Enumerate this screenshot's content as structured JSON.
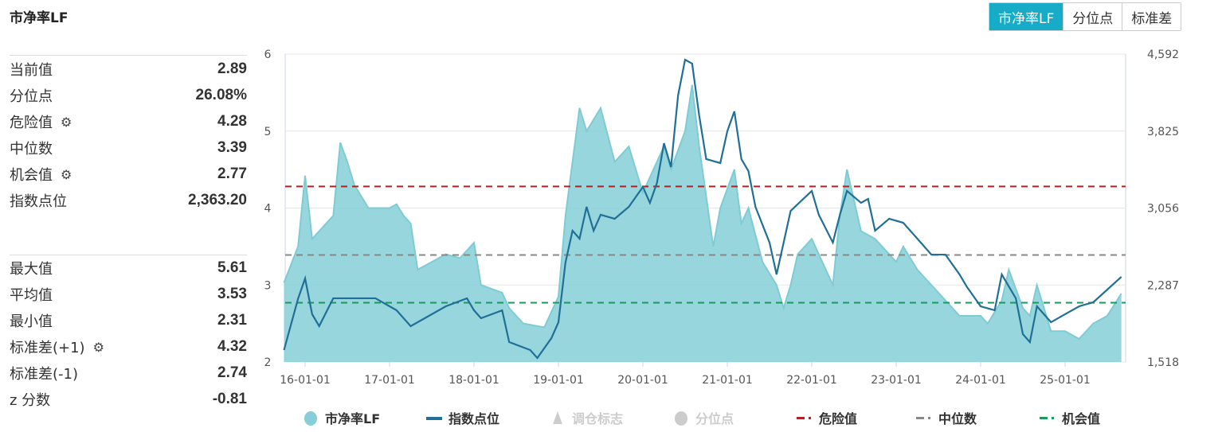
{
  "title": "市净率LF",
  "buttons": [
    {
      "label": "市净率LF",
      "active": true
    },
    {
      "label": "分位点",
      "active": false
    },
    {
      "label": "标准差",
      "active": false
    }
  ],
  "stats_top": [
    {
      "label": "当前值",
      "value": "2.89",
      "gear": false
    },
    {
      "label": "分位点",
      "value": "26.08%",
      "gear": false
    },
    {
      "label": "危险值",
      "value": "4.28",
      "gear": true
    },
    {
      "label": "中位数",
      "value": "3.39",
      "gear": false
    },
    {
      "label": "机会值",
      "value": "2.77",
      "gear": true
    },
    {
      "label": "指数点位",
      "value": "2,363.20",
      "gear": false
    }
  ],
  "stats_bottom": [
    {
      "label": "最大值",
      "value": "5.61",
      "gear": false
    },
    {
      "label": "平均值",
      "value": "3.53",
      "gear": false
    },
    {
      "label": "最小值",
      "value": "2.31",
      "gear": false
    },
    {
      "label": "标准差(+1)",
      "value": "4.32",
      "gear": true
    },
    {
      "label": "标准差(-1)",
      "value": "2.74",
      "gear": false
    },
    {
      "label": "z 分数",
      "value": "-0.81",
      "gear": false
    }
  ],
  "chart_data": {
    "type": "area+line",
    "x_ticks": [
      "16-01-01",
      "17-01-01",
      "18-01-01",
      "19-01-01",
      "20-01-01",
      "21-01-01",
      "22-01-01",
      "23-01-01",
      "24-01-01",
      "25-01-01"
    ],
    "y_left": {
      "min": 2,
      "max": 6,
      "ticks": [
        "2",
        "3",
        "4",
        "5",
        "6"
      ]
    },
    "y_right": {
      "min": 1518,
      "max": 4592,
      "ticks": [
        "1,518",
        "2,287",
        "3,056",
        "3,825",
        "4,592"
      ]
    },
    "grid": true,
    "legend_position": "bottom",
    "legend": [
      {
        "label": "市净率LF",
        "icon": "circle",
        "color": "#86cfd8",
        "enabled": true
      },
      {
        "label": "指数点位",
        "icon": "line",
        "color": "#1f6f96",
        "enabled": true
      },
      {
        "label": "调仓标志",
        "icon": "triangle",
        "color": "#cccccc",
        "enabled": false
      },
      {
        "label": "分位点",
        "icon": "circle",
        "color": "#cccccc",
        "enabled": false
      },
      {
        "label": "危险值",
        "icon": "dash",
        "color": "#b22222",
        "enabled": true
      },
      {
        "label": "中位数",
        "icon": "dash",
        "color": "#888888",
        "enabled": true
      },
      {
        "label": "机会值",
        "icon": "dash",
        "color": "#1a9a5a",
        "enabled": true
      }
    ],
    "reference_lines": {
      "danger": 4.28,
      "median": 3.39,
      "opportunity": 2.77
    },
    "pb_series": [
      [
        "2015-10",
        3.03
      ],
      [
        "2015-12",
        3.5
      ],
      [
        "2016-01",
        4.42
      ],
      [
        "2016-02",
        3.6
      ],
      [
        "2016-04",
        3.8
      ],
      [
        "2016-05",
        3.9
      ],
      [
        "2016-06",
        4.85
      ],
      [
        "2016-07",
        4.6
      ],
      [
        "2016-08",
        4.3
      ],
      [
        "2016-10",
        4.0
      ],
      [
        "2017-01",
        4.0
      ],
      [
        "2017-02",
        4.05
      ],
      [
        "2017-03",
        3.9
      ],
      [
        "2017-04",
        3.8
      ],
      [
        "2017-05",
        3.2
      ],
      [
        "2017-07",
        3.3
      ],
      [
        "2017-09",
        3.4
      ],
      [
        "2017-11",
        3.35
      ],
      [
        "2018-01",
        3.55
      ],
      [
        "2018-02",
        3.0
      ],
      [
        "2018-05",
        2.9
      ],
      [
        "2018-06",
        2.7
      ],
      [
        "2018-08",
        2.5
      ],
      [
        "2018-11",
        2.45
      ],
      [
        "2019-01",
        2.85
      ],
      [
        "2019-02",
        3.9
      ],
      [
        "2019-04",
        5.3
      ],
      [
        "2019-05",
        5.0
      ],
      [
        "2019-07",
        5.3
      ],
      [
        "2019-09",
        4.6
      ],
      [
        "2019-11",
        4.8
      ],
      [
        "2020-01",
        4.2
      ],
      [
        "2020-04",
        4.8
      ],
      [
        "2020-05",
        4.5
      ],
      [
        "2020-07",
        5.0
      ],
      [
        "2020-08",
        5.6
      ],
      [
        "2020-09",
        4.8
      ],
      [
        "2020-11",
        3.5
      ],
      [
        "2020-12",
        4.0
      ],
      [
        "2021-02",
        4.5
      ],
      [
        "2021-03",
        3.8
      ],
      [
        "2021-04",
        4.0
      ],
      [
        "2021-06",
        3.3
      ],
      [
        "2021-08",
        3.0
      ],
      [
        "2021-09",
        2.7
      ],
      [
        "2021-10",
        3.0
      ],
      [
        "2021-11",
        3.4
      ],
      [
        "2022-01",
        3.6
      ],
      [
        "2022-03",
        3.2
      ],
      [
        "2022-04",
        3.0
      ],
      [
        "2022-05",
        3.9
      ],
      [
        "2022-06",
        4.5
      ],
      [
        "2022-08",
        3.7
      ],
      [
        "2022-10",
        3.6
      ],
      [
        "2023-01",
        3.3
      ],
      [
        "2023-02",
        3.5
      ],
      [
        "2023-04",
        3.2
      ],
      [
        "2023-06",
        3.0
      ],
      [
        "2023-08",
        2.8
      ],
      [
        "2023-10",
        2.6
      ],
      [
        "2024-01",
        2.6
      ],
      [
        "2024-02",
        2.5
      ],
      [
        "2024-04",
        2.8
      ],
      [
        "2024-05",
        3.2
      ],
      [
        "2024-07",
        2.7
      ],
      [
        "2024-08",
        2.6
      ],
      [
        "2024-09",
        3.0
      ],
      [
        "2024-11",
        2.4
      ],
      [
        "2025-01",
        2.4
      ],
      [
        "2025-03",
        2.3
      ],
      [
        "2025-05",
        2.5
      ],
      [
        "2025-07",
        2.6
      ],
      [
        "2025-09",
        2.89
      ]
    ],
    "index_series": [
      [
        "2015-10",
        1637
      ],
      [
        "2015-12",
        2150
      ],
      [
        "2016-01",
        2352
      ],
      [
        "2016-02",
        1995
      ],
      [
        "2016-03",
        1876
      ],
      [
        "2016-05",
        2154
      ],
      [
        "2016-07",
        2154
      ],
      [
        "2016-11",
        2154
      ],
      [
        "2017-01",
        2074
      ],
      [
        "2017-02",
        2034
      ],
      [
        "2017-04",
        1876
      ],
      [
        "2017-06",
        1955
      ],
      [
        "2017-09",
        2074
      ],
      [
        "2017-12",
        2154
      ],
      [
        "2018-01",
        2034
      ],
      [
        "2018-02",
        1955
      ],
      [
        "2018-05",
        2034
      ],
      [
        "2018-06",
        1717
      ],
      [
        "2018-09",
        1637
      ],
      [
        "2018-10",
        1558
      ],
      [
        "2018-12",
        1756
      ],
      [
        "2019-01",
        1915
      ],
      [
        "2019-02",
        2511
      ],
      [
        "2019-03",
        2829
      ],
      [
        "2019-04",
        2749
      ],
      [
        "2019-05",
        3067
      ],
      [
        "2019-06",
        2829
      ],
      [
        "2019-07",
        2988
      ],
      [
        "2019-09",
        2948
      ],
      [
        "2019-11",
        3067
      ],
      [
        "2020-01",
        3266
      ],
      [
        "2020-02",
        3107
      ],
      [
        "2020-03",
        3305
      ],
      [
        "2020-04",
        3702
      ],
      [
        "2020-05",
        3464
      ],
      [
        "2020-06",
        4179
      ],
      [
        "2020-07",
        4536
      ],
      [
        "2020-08",
        4497
      ],
      [
        "2020-09",
        3980
      ],
      [
        "2020-10",
        3544
      ],
      [
        "2020-12",
        3504
      ],
      [
        "2021-01",
        3822
      ],
      [
        "2021-02",
        4020
      ],
      [
        "2021-03",
        3544
      ],
      [
        "2021-04",
        3424
      ],
      [
        "2021-05",
        3067
      ],
      [
        "2021-07",
        2710
      ],
      [
        "2021-08",
        2392
      ],
      [
        "2021-10",
        3027
      ],
      [
        "2022-01",
        3226
      ],
      [
        "2022-02",
        2988
      ],
      [
        "2022-04",
        2710
      ],
      [
        "2022-05",
        2988
      ],
      [
        "2022-06",
        3226
      ],
      [
        "2022-08",
        3107
      ],
      [
        "2022-09",
        3146
      ],
      [
        "2022-10",
        2829
      ],
      [
        "2022-12",
        2948
      ],
      [
        "2023-02",
        2908
      ],
      [
        "2023-04",
        2749
      ],
      [
        "2023-06",
        2590
      ],
      [
        "2023-08",
        2590
      ],
      [
        "2023-10",
        2392
      ],
      [
        "2023-11",
        2273
      ],
      [
        "2024-01",
        2074
      ],
      [
        "2024-03",
        2034
      ],
      [
        "2024-04",
        2392
      ],
      [
        "2024-06",
        2154
      ],
      [
        "2024-07",
        1796
      ],
      [
        "2024-08",
        1717
      ],
      [
        "2024-09",
        2074
      ],
      [
        "2024-11",
        1915
      ],
      [
        "2025-01",
        1995
      ],
      [
        "2025-03",
        2074
      ],
      [
        "2025-05",
        2114
      ],
      [
        "2025-09",
        2368
      ]
    ]
  }
}
